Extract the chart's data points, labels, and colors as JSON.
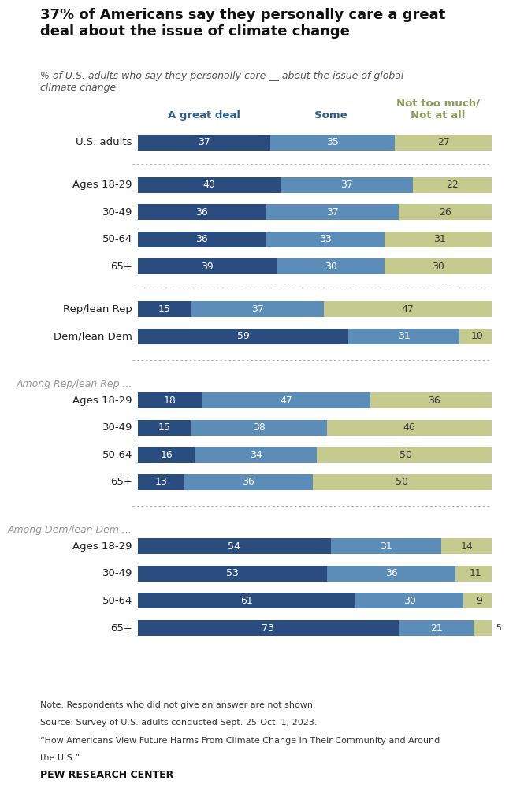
{
  "title": "37% of Americans say they personally care a great\ndeal about the issue of climate change",
  "subtitle": "% of U.S. adults who say they personally care __ about the issue of global\nclimate change",
  "col_headers": [
    "A great deal",
    "Some",
    "Not too much/\nNot at all"
  ],
  "col_header_colors": [
    "#2e5f8a",
    "#2e5f8a",
    "#8a9a5b"
  ],
  "groups": [
    {
      "section_label": null,
      "rows": [
        {
          "label": "U.S. adults",
          "values": [
            37,
            35,
            27
          ]
        }
      ]
    },
    {
      "section_label": null,
      "rows": [
        {
          "label": "Ages 18-29",
          "values": [
            40,
            37,
            22
          ]
        },
        {
          "label": "30-49",
          "values": [
            36,
            37,
            26
          ]
        },
        {
          "label": "50-64",
          "values": [
            36,
            33,
            31
          ]
        },
        {
          "label": "65+",
          "values": [
            39,
            30,
            30
          ]
        }
      ]
    },
    {
      "section_label": null,
      "rows": [
        {
          "label": "Rep/lean Rep",
          "values": [
            15,
            37,
            47
          ]
        },
        {
          "label": "Dem/lean Dem",
          "values": [
            59,
            31,
            10
          ]
        }
      ]
    },
    {
      "section_label": "Among Rep/lean Rep ...",
      "rows": [
        {
          "label": "Ages 18-29",
          "values": [
            18,
            47,
            36
          ]
        },
        {
          "label": "30-49",
          "values": [
            15,
            38,
            46
          ]
        },
        {
          "label": "50-64",
          "values": [
            16,
            34,
            50
          ]
        },
        {
          "label": "65+",
          "values": [
            13,
            36,
            50
          ]
        }
      ]
    },
    {
      "section_label": "Among Dem/lean Dem ...",
      "rows": [
        {
          "label": "Ages 18-29",
          "values": [
            54,
            31,
            14
          ]
        },
        {
          "label": "30-49",
          "values": [
            53,
            36,
            11
          ]
        },
        {
          "label": "50-64",
          "values": [
            61,
            30,
            9
          ]
        },
        {
          "label": "65+",
          "values": [
            73,
            21,
            5
          ]
        }
      ]
    }
  ],
  "notes": [
    "Note: Respondents who did not give an answer are not shown.",
    "Source: Survey of U.S. adults conducted Sept. 25-Oct. 1, 2023.",
    "“How Americans View Future Harms From Climate Change in Their Community and Around\nthe U.S.”"
  ],
  "footer": "PEW RESEARCH CENTER",
  "bar_height": 0.58,
  "color_dark": "#2b4c7e",
  "color_mid": "#5b8db8",
  "color_light": "#c5ca8e",
  "text_color_dark": "#ffffff",
  "text_color_light": "#3a3a3a",
  "background": "#ffffff",
  "group_spacings": [
    0,
    0.55,
    0.55,
    0.75,
    0.75
  ]
}
